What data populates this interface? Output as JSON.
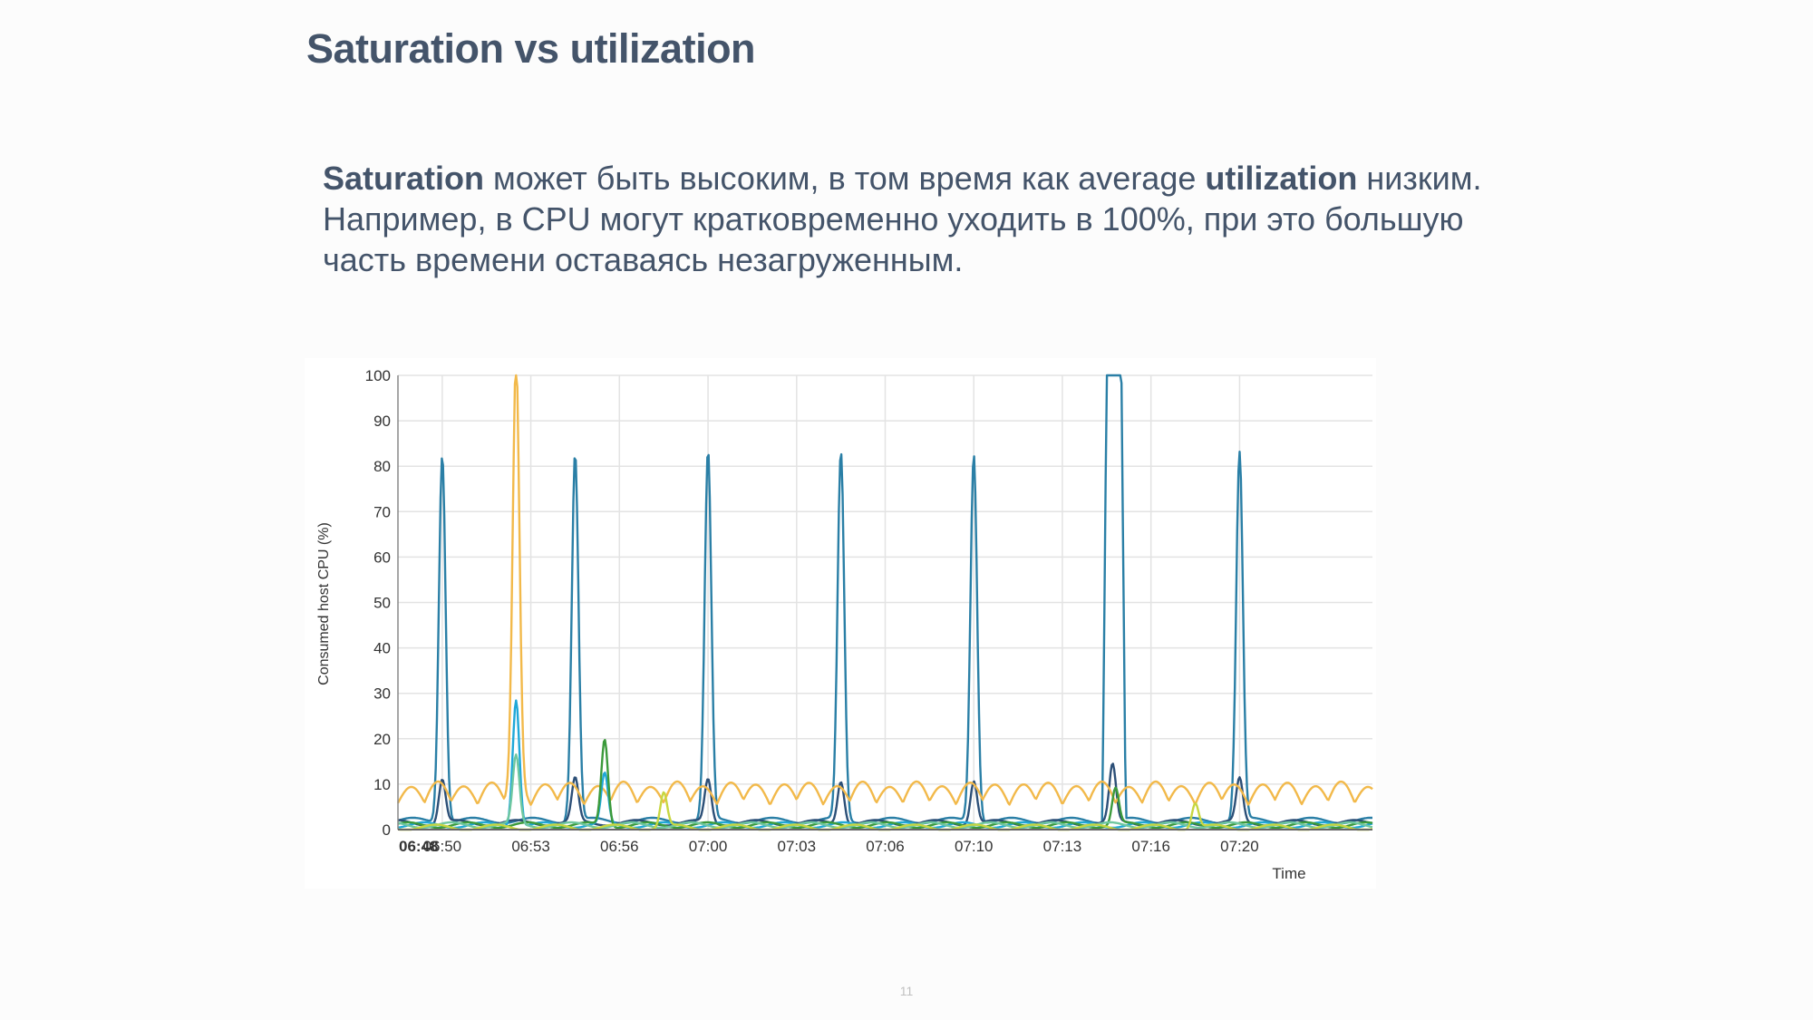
{
  "slide": {
    "title": "Saturation vs utilization",
    "body_part1": "Saturation",
    "body_part2": " может быть высоким, в том время как average ",
    "body_part3": "utilization",
    "body_part4": " низким.  Например, в CPU могут кратковременно уходить в 100%, при это большую часть времени оставаясь незагруженным.",
    "page_number": "11"
  },
  "chart_data": {
    "type": "line",
    "title": "",
    "xlabel": "Time",
    "ylabel": "Consumed host CPU (%)",
    "ylim": [
      0,
      100
    ],
    "yticks": [
      0,
      10,
      20,
      30,
      40,
      50,
      60,
      70,
      80,
      90,
      100
    ],
    "xlim": [
      "06:48",
      "07:21"
    ],
    "xtick_labels": [
      "06:48",
      "06:50",
      "06:53",
      "06:56",
      "07:00",
      "07:03",
      "07:06",
      "07:10",
      "07:13",
      "07:16",
      "07:20"
    ],
    "xtick_minutes": [
      0,
      1.5,
      4.5,
      7.5,
      10.5,
      13.5,
      16.5,
      19.5,
      22.5,
      25.5,
      28.5
    ],
    "grid": true,
    "legend": "none",
    "series": [
      {
        "color": "#2a7fa6",
        "baseline": 2,
        "spikes": [
          [
            1.5,
            83
          ],
          [
            6.0,
            83
          ],
          [
            10.5,
            83
          ],
          [
            15.0,
            83
          ],
          [
            19.5,
            83
          ],
          [
            28.5,
            83
          ]
        ],
        "plateaus": [
          [
            24.0,
            24.5,
            100
          ]
        ]
      },
      {
        "color": "#2c4f77",
        "baseline": 1.5,
        "spikes": [
          [
            1.5,
            11
          ],
          [
            6.0,
            11
          ],
          [
            10.5,
            11
          ],
          [
            15.0,
            11
          ],
          [
            19.5,
            11
          ],
          [
            24.2,
            14
          ],
          [
            28.5,
            11
          ]
        ]
      },
      {
        "color": "#f2b94a",
        "baseline": 6,
        "wave": [
          4,
          0.9
        ],
        "spikes": [
          [
            4.0,
            100
          ]
        ]
      },
      {
        "color": "#20a8d8",
        "baseline": 1,
        "spikes": [
          [
            4.0,
            29
          ],
          [
            7.0,
            12
          ]
        ]
      },
      {
        "color": "#3b9a3b",
        "baseline": 1,
        "spikes": [
          [
            7.0,
            20
          ],
          [
            24.3,
            9
          ]
        ]
      },
      {
        "color": "#6fc7a0",
        "baseline": 1,
        "spikes": [
          [
            4.0,
            16
          ]
        ]
      },
      {
        "color": "#c8d641",
        "baseline": 0.5,
        "spikes": [
          [
            9.0,
            8
          ],
          [
            27.0,
            6
          ]
        ]
      }
    ]
  }
}
